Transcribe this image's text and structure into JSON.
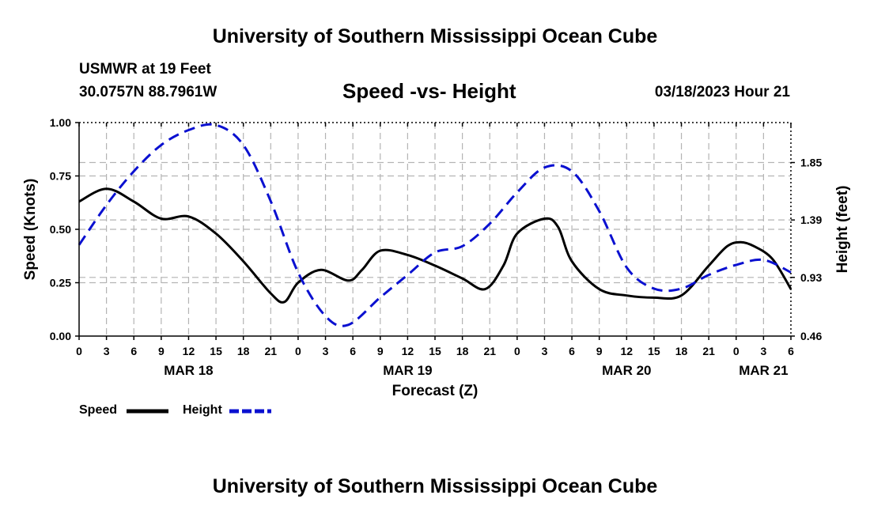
{
  "header": {
    "title": "University of Southern Mississippi Ocean Cube",
    "station": "USMWR at 19 Feet",
    "coordinates": "30.0757N  88.7961W",
    "subtitle": "Speed -vs- Height",
    "datetime": "03/18/2023 Hour 21"
  },
  "footer": {
    "title": "University of Southern Mississippi Ocean Cube"
  },
  "colors": {
    "speed": "#000000",
    "height": "#0a10d0",
    "grid": "#b4b4b4"
  },
  "chart_data": {
    "type": "line",
    "title": "Speed -vs- Height",
    "xlabel": "Forecast (Z)",
    "ylabel": "Speed (Knots)",
    "y2label": "Height (feet)",
    "x_unit": "hours from MAR 18 00Z",
    "xlim": [
      0,
      78
    ],
    "ylim": [
      0,
      1.0
    ],
    "y2lim": [
      0.46,
      2.17
    ],
    "x_ticks": [
      0,
      3,
      6,
      9,
      12,
      15,
      18,
      21,
      24,
      27,
      30,
      33,
      36,
      39,
      42,
      45,
      48,
      51,
      54,
      57,
      60,
      63,
      66,
      69,
      72,
      75,
      78
    ],
    "x_tick_labels": [
      "0",
      "3",
      "6",
      "9",
      "12",
      "15",
      "18",
      "21",
      "0",
      "3",
      "6",
      "9",
      "12",
      "15",
      "18",
      "21",
      "0",
      "3",
      "6",
      "9",
      "12",
      "15",
      "18",
      "21",
      "0",
      "3",
      "6"
    ],
    "date_labels": [
      {
        "x": 12,
        "label": "MAR 18"
      },
      {
        "x": 36,
        "label": "MAR 19"
      },
      {
        "x": 60,
        "label": "MAR 20"
      },
      {
        "x": 75,
        "label": "MAR 21"
      }
    ],
    "y_ticks": [
      0.0,
      0.25,
      0.5,
      0.75,
      1.0
    ],
    "y_tick_labels": [
      "0.00",
      "0.25",
      "0.50",
      "0.75",
      "1.00"
    ],
    "y2_ticks": [
      0.46,
      0.93,
      1.39,
      1.85
    ],
    "y2_tick_labels": [
      "0.46",
      "0.93",
      "1.39",
      "1.85"
    ],
    "grid": true,
    "legend": [
      {
        "name": "Speed",
        "style": "solid"
      },
      {
        "name": "Height",
        "style": "dashed"
      }
    ],
    "series": [
      {
        "name": "Speed",
        "axis": "left",
        "x": [
          0,
          3,
          6,
          9,
          12,
          15,
          18,
          21,
          22.5,
          24,
          26.5,
          29.5,
          31,
          33,
          36,
          39,
          42,
          44.5,
          46.5,
          48,
          51,
          52.5,
          54,
          57,
          60,
          63,
          66,
          69,
          71,
          72.5,
          74,
          76,
          78
        ],
        "y": [
          0.63,
          0.69,
          0.63,
          0.55,
          0.56,
          0.48,
          0.35,
          0.2,
          0.16,
          0.25,
          0.31,
          0.26,
          0.31,
          0.4,
          0.38,
          0.33,
          0.27,
          0.22,
          0.33,
          0.48,
          0.55,
          0.51,
          0.35,
          0.22,
          0.19,
          0.18,
          0.19,
          0.33,
          0.42,
          0.44,
          0.42,
          0.36,
          0.22
        ]
      },
      {
        "name": "Height",
        "axis": "right",
        "x": [
          0,
          3,
          6,
          9,
          12,
          15,
          18,
          21,
          24,
          27,
          29.5,
          33,
          36,
          39,
          42,
          45,
          48,
          51,
          54,
          57,
          60,
          63,
          66,
          69,
          72,
          75,
          78
        ],
        "y": [
          1.19,
          1.51,
          1.78,
          1.99,
          2.11,
          2.15,
          1.99,
          1.54,
          0.97,
          0.62,
          0.55,
          0.77,
          0.95,
          1.13,
          1.18,
          1.36,
          1.61,
          1.81,
          1.78,
          1.46,
          1.01,
          0.84,
          0.84,
          0.95,
          1.03,
          1.07,
          0.97
        ]
      }
    ]
  }
}
